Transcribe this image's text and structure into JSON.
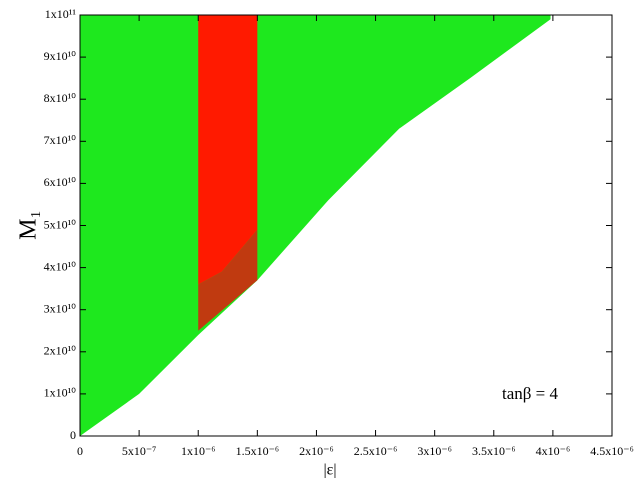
{
  "chart_data": {
    "type": "area",
    "xlabel": "|ε|",
    "ylabel": "M₁",
    "annotation": "tanβ = 4",
    "xlim": [
      0,
      4.5e-06
    ],
    "ylim": [
      0,
      100000000000.0
    ],
    "xticks": [
      0,
      {
        "value": 5e-07,
        "label": "5x10⁻⁷"
      },
      {
        "value": 1e-06,
        "label": "1x10⁻⁶"
      },
      {
        "value": 1.5e-06,
        "label": "1.5x10⁻⁶"
      },
      {
        "value": 2e-06,
        "label": "2x10⁻⁶"
      },
      {
        "value": 2.5e-06,
        "label": "2.5x10⁻⁶"
      },
      {
        "value": 3e-06,
        "label": "3x10⁻⁶"
      },
      {
        "value": 3.5e-06,
        "label": "3.5x10⁻⁶"
      },
      {
        "value": 4e-06,
        "label": "4x10⁻⁶"
      },
      {
        "value": 4.5e-06,
        "label": "4.5x10⁻⁶"
      }
    ],
    "yticks": [
      0,
      {
        "value": 10000000000.0,
        "label": "1x10¹⁰"
      },
      {
        "value": 20000000000.0,
        "label": "2x10¹⁰"
      },
      {
        "value": 30000000000.0,
        "label": "3x10¹⁰"
      },
      {
        "value": 40000000000.0,
        "label": "4x10¹⁰"
      },
      {
        "value": 50000000000.0,
        "label": "5x10¹⁰"
      },
      {
        "value": 60000000000.0,
        "label": "6x10¹⁰"
      },
      {
        "value": 70000000000.0,
        "label": "7x10¹⁰"
      },
      {
        "value": 80000000000.0,
        "label": "8x10¹⁰"
      },
      {
        "value": 90000000000.0,
        "label": "9x10¹⁰"
      },
      {
        "value": 100000000000.0,
        "label": "1x10¹¹"
      }
    ],
    "series": [
      {
        "color": "#1ee81e",
        "x": [
          0,
          5e-07,
          1e-06,
          1.5e-06,
          2.1e-06,
          2.7e-06,
          3.3e-06,
          3.98e-06,
          3.98e-06,
          0
        ],
        "y": [
          0,
          10000000000.0,
          24000000000.0,
          37000000000.0,
          56000000000.0,
          73000000000.0,
          85000000000.0,
          99000000000.0,
          100000000000.0,
          100000000000.0
        ]
      },
      {
        "color": "#ff1a00",
        "x": [
          1e-06,
          1.2e-06,
          1.5e-06,
          1.5e-06,
          1e-06
        ],
        "y": [
          36000000000.0,
          39000000000.0,
          49000000000.0,
          100000000000.0,
          100000000000.0
        ]
      },
      {
        "color": "#c03a10",
        "x": [
          1e-06,
          1.5e-06,
          1.5e-06,
          1.2e-06,
          1e-06
        ],
        "y": [
          25000000000.0,
          37000000000.0,
          49000000000.0,
          39000000000.0,
          36000000000.0
        ]
      }
    ]
  }
}
